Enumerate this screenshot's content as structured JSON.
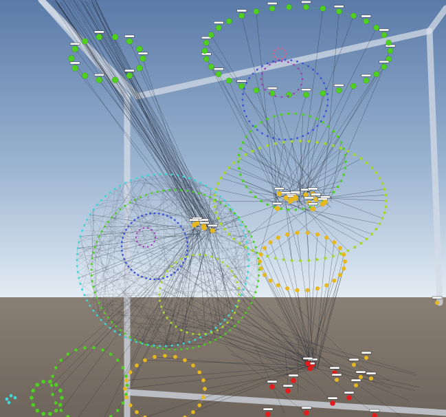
{
  "scene": {
    "description_visible_text": "",
    "colors": {
      "sky_top": "#5a7aa8",
      "sky_mid": "#9ab3d0",
      "horizon": "#e3ecf4",
      "ground": "#8a7f74",
      "ground_dark": "#6d645b",
      "frame": "#d4dbe6",
      "edge": "#1e2430",
      "node_green": "#4fcf1f",
      "node_yellowgreen": "#a8d630",
      "node_yellow": "#e6b81d",
      "node_red": "#e21c1c",
      "node_cyan": "#3fd6d6",
      "node_blue": "#3a52d6",
      "node_purple": "#9a3ab2",
      "node_pink": "#d9628f",
      "label_bg": "#ffffff",
      "label_fg": "#111111"
    }
  }
}
